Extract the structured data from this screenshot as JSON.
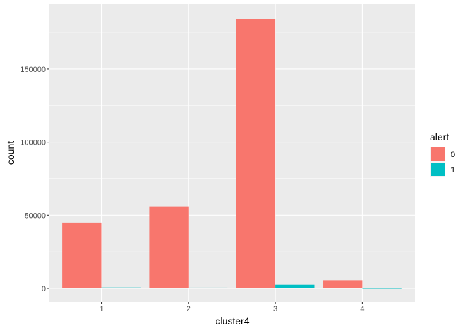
{
  "chart_data": {
    "type": "bar",
    "categories": [
      "1",
      "2",
      "3",
      "4"
    ],
    "xlabel": "cluster4",
    "ylabel": "count",
    "ylim": [
      0,
      193000
    ],
    "yticks": [
      0,
      50000,
      100000,
      150000
    ],
    "ytick_labels": [
      "0",
      "50000",
      "100000",
      "150000"
    ],
    "grid": true,
    "legend": {
      "title": "alert",
      "position": "right"
    },
    "series": [
      {
        "name": "0",
        "color": "#f8766d",
        "values": [
          45000,
          56000,
          184500,
          5500
        ]
      },
      {
        "name": "1",
        "color": "#00bfc4",
        "values": [
          600,
          500,
          2500,
          150
        ]
      }
    ]
  }
}
